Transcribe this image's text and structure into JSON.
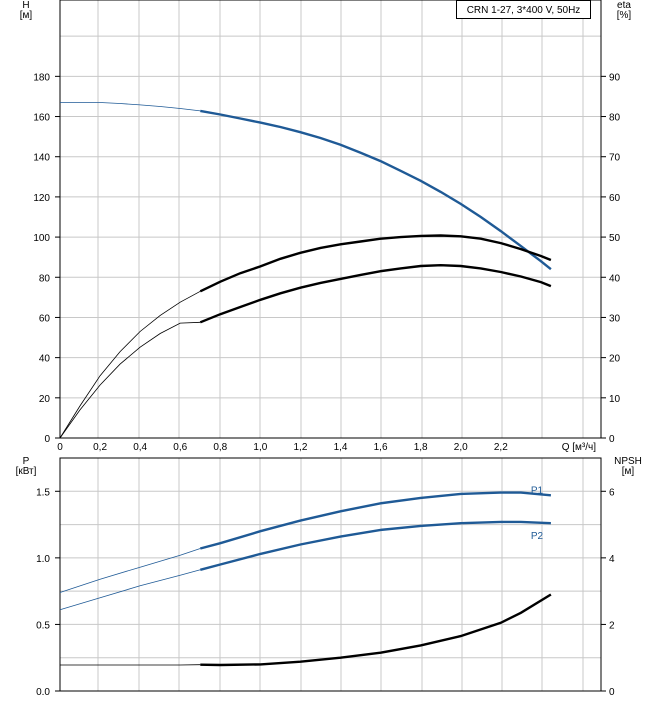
{
  "colors": {
    "blue": "#1f5a96",
    "black": "#000000",
    "grid": "#c8c8c8",
    "thin": "#555555"
  },
  "chart_data": [
    {
      "type": "line",
      "title": "CRN 1-27, 3*400 V, 50Hz",
      "xlabel": "Q [м³/ч]",
      "ylabel": "H\n[м]",
      "y2label": "eta\n[%]",
      "xlim": [
        0,
        2.7
      ],
      "ylim": [
        0,
        218
      ],
      "y2lim": [
        0,
        109
      ],
      "xticks": [
        "0",
        "0,2",
        "0,4",
        "0,6",
        "0,8",
        "1,0",
        "1,2",
        "1,4",
        "1,6",
        "1,8",
        "2,0",
        "2,2"
      ],
      "yticks": [
        "0",
        "20",
        "40",
        "60",
        "80",
        "100",
        "120",
        "140",
        "160",
        "180"
      ],
      "y2ticks": [
        "0",
        "10",
        "20",
        "30",
        "40",
        "50",
        "60",
        "70",
        "80",
        "90"
      ],
      "grid": true,
      "series": [
        {
          "axis": "y",
          "color": "blue",
          "x": [
            0,
            0.1,
            0.2,
            0.3,
            0.4,
            0.5,
            0.6,
            0.7,
            0.8,
            0.9,
            1.0,
            1.1,
            1.2,
            1.3,
            1.4,
            1.5,
            1.6,
            1.7,
            1.8,
            1.9,
            2.0,
            2.1,
            2.2,
            2.3,
            2.4,
            2.45
          ],
          "values": [
            167,
            167,
            167,
            166.5,
            165.8,
            165,
            164,
            162.8,
            161,
            159,
            157,
            154.8,
            152.2,
            149.3,
            146,
            142,
            137.8,
            133,
            128,
            122.5,
            116.5,
            110,
            103,
            95.5,
            88,
            84
          ]
        },
        {
          "axis": "y2",
          "color": "black",
          "x": [
            0,
            0.1,
            0.2,
            0.3,
            0.4,
            0.5,
            0.6,
            0.7,
            0.8,
            0.9,
            1.0,
            1.1,
            1.2,
            1.3,
            1.4,
            1.5,
            1.6,
            1.7,
            1.8,
            1.9,
            2.0,
            2.1,
            2.2,
            2.3,
            2.4,
            2.45
          ],
          "values": [
            0,
            8,
            15.5,
            21.5,
            26.5,
            30.5,
            33.8,
            36.5,
            38.9,
            41,
            42.7,
            44.6,
            46.1,
            47.3,
            48.2,
            48.9,
            49.6,
            50,
            50.3,
            50.4,
            50.2,
            49.6,
            48.5,
            47,
            45.3,
            44.3
          ]
        },
        {
          "axis": "y2",
          "color": "black",
          "x": [
            0,
            0.1,
            0.2,
            0.3,
            0.4,
            0.5,
            0.6,
            0.7,
            0.8,
            0.9,
            1.0,
            1.1,
            1.2,
            1.3,
            1.4,
            1.5,
            1.6,
            1.7,
            1.8,
            1.9,
            2.0,
            2.1,
            2.2,
            2.3,
            2.4,
            2.45
          ],
          "values": [
            0,
            7,
            13.2,
            18.4,
            22.6,
            26,
            28.6,
            28.8,
            30.8,
            32.6,
            34.4,
            36,
            37.4,
            38.6,
            39.6,
            40.6,
            41.5,
            42.2,
            42.8,
            43,
            42.8,
            42.2,
            41.3,
            40.2,
            38.8,
            37.8
          ]
        }
      ]
    },
    {
      "type": "line",
      "xlabel": "",
      "ylabel": "P\n[кВт]",
      "y2label": "NPSH\n[м]",
      "xlim": [
        0,
        2.7
      ],
      "ylim": [
        0,
        1.75
      ],
      "y2lim": [
        0,
        7
      ],
      "yticks": [
        "0.0",
        "0.5",
        "1.0",
        "1.5"
      ],
      "y2ticks": [
        "0",
        "2",
        "4",
        "6"
      ],
      "grid": true,
      "series": [
        {
          "name": "P1",
          "axis": "y",
          "color": "blue",
          "x": [
            0,
            0.2,
            0.4,
            0.6,
            0.7,
            0.8,
            1.0,
            1.2,
            1.4,
            1.6,
            1.8,
            2.0,
            2.2,
            2.3,
            2.45
          ],
          "values": [
            0.74,
            0.84,
            0.93,
            1.02,
            1.07,
            1.11,
            1.2,
            1.28,
            1.35,
            1.41,
            1.45,
            1.48,
            1.49,
            1.49,
            1.47
          ]
        },
        {
          "name": "P2",
          "axis": "y",
          "color": "blue",
          "x": [
            0,
            0.2,
            0.4,
            0.6,
            0.7,
            0.8,
            1.0,
            1.2,
            1.4,
            1.6,
            1.8,
            2.0,
            2.2,
            2.3,
            2.45
          ],
          "values": [
            0.61,
            0.7,
            0.79,
            0.87,
            0.91,
            0.95,
            1.03,
            1.1,
            1.16,
            1.21,
            1.24,
            1.26,
            1.27,
            1.27,
            1.26
          ]
        },
        {
          "axis": "y2",
          "color": "black",
          "x": [
            0,
            0.2,
            0.4,
            0.6,
            0.7,
            0.8,
            1.0,
            1.2,
            1.4,
            1.6,
            1.8,
            2.0,
            2.2,
            2.3,
            2.45
          ],
          "values": [
            0.78,
            0.78,
            0.78,
            0.78,
            0.79,
            0.78,
            0.8,
            0.88,
            1.0,
            1.15,
            1.37,
            1.65,
            2.05,
            2.35,
            2.9
          ]
        }
      ]
    }
  ]
}
